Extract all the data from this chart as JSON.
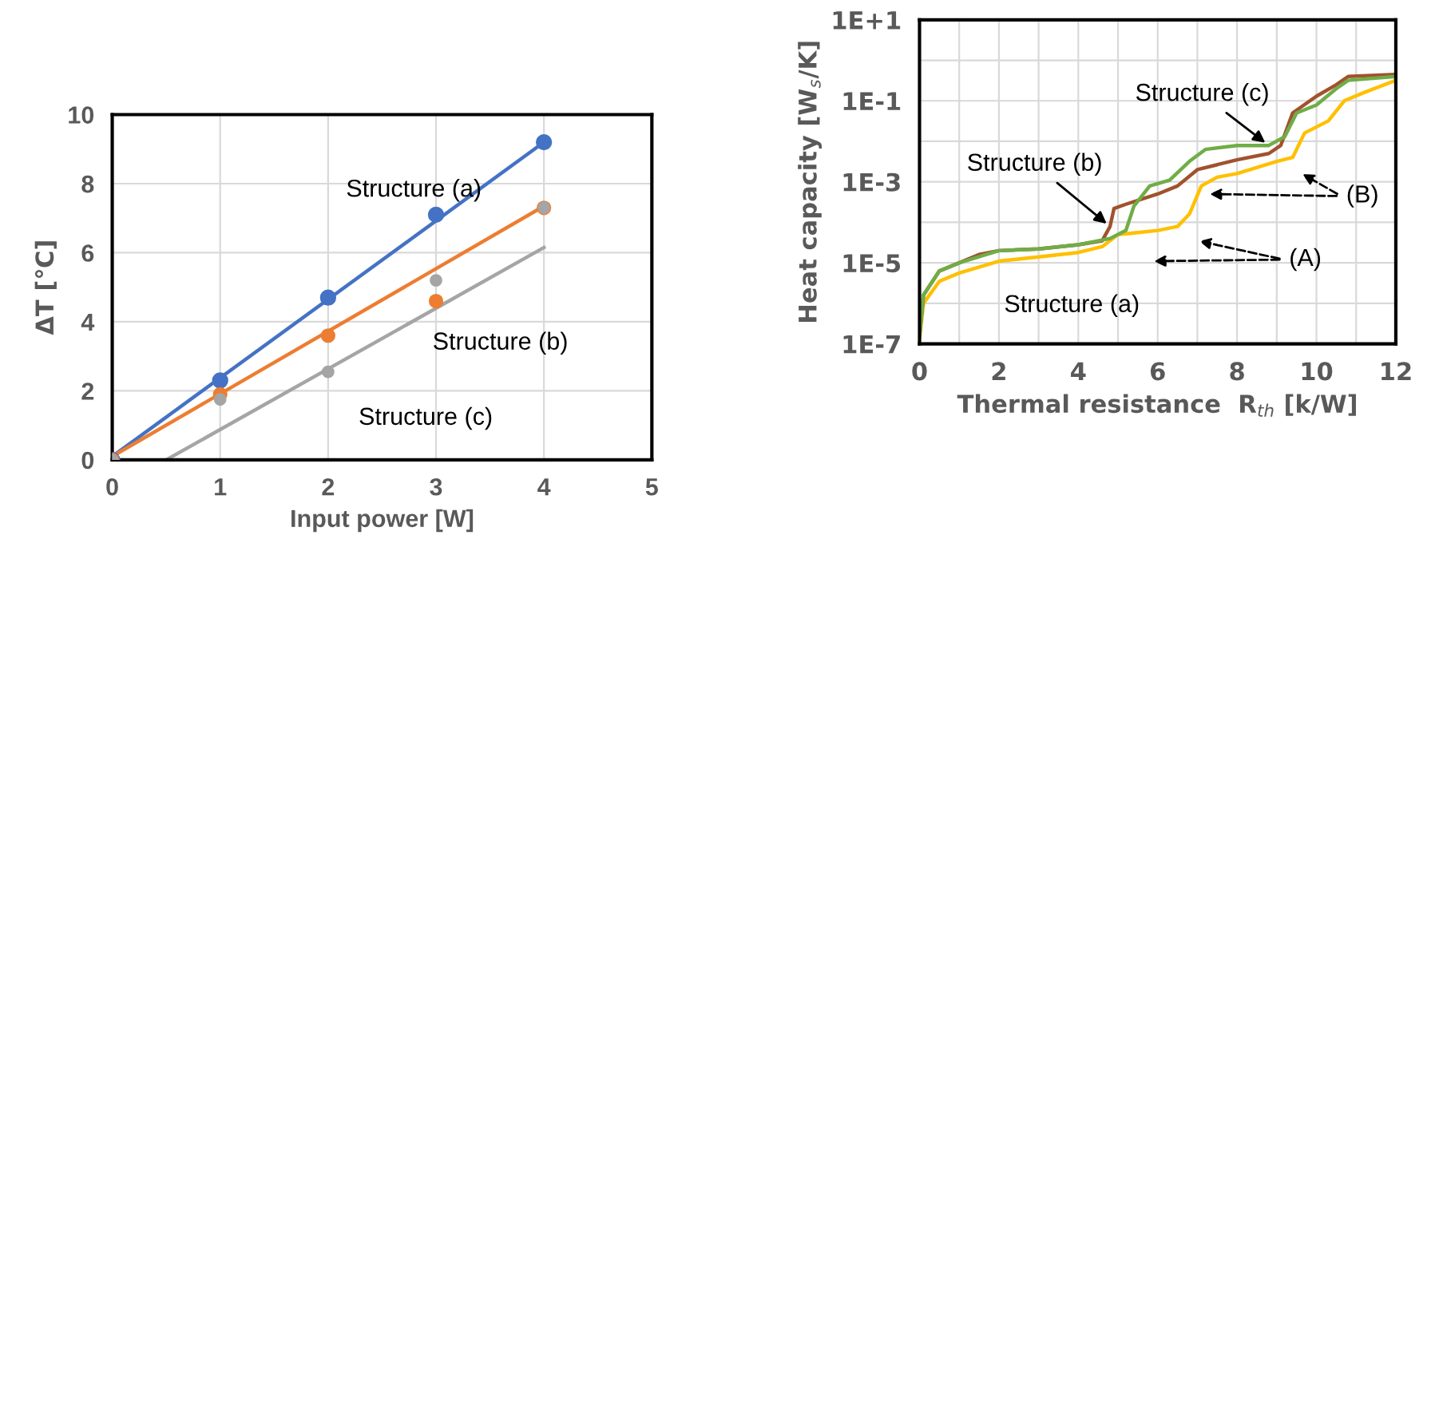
{
  "chart_data": [
    {
      "type": "scatter",
      "xlabel": "Input power [W]",
      "ylabel": "ΔT [℃]",
      "xlim": [
        0,
        5
      ],
      "ylim": [
        0,
        10
      ],
      "xticks": [
        0,
        1,
        2,
        3,
        4,
        5
      ],
      "yticks": [
        0,
        2,
        4,
        6,
        8,
        10
      ],
      "grid": true,
      "legend": false,
      "series": [
        {
          "name": "Structure (a)",
          "color": "#4472c4",
          "marker": "circle",
          "x": [
            0,
            1,
            2,
            3,
            4
          ],
          "values": [
            0,
            2.3,
            4.7,
            7.1,
            9.2
          ]
        },
        {
          "name": "Structure (b)",
          "color": "#ed7d31",
          "marker": "circle",
          "x": [
            0,
            1,
            2,
            3,
            4
          ],
          "values": [
            0,
            1.9,
            3.6,
            4.6,
            7.3
          ]
        },
        {
          "name": "Structure (c)",
          "color": "#a5a5a5",
          "marker": "circle",
          "x": [
            0,
            1,
            2,
            3,
            4
          ],
          "values": [
            0,
            1.75,
            2.55,
            5.2,
            7.3
          ]
        },
        {
          "type": "line",
          "color": "#4472c4",
          "x": [
            0,
            4
          ],
          "values": [
            0.1,
            9.2
          ]
        },
        {
          "type": "line",
          "color": "#ed7d31",
          "x": [
            0,
            4
          ],
          "values": [
            0.1,
            7.35
          ]
        },
        {
          "type": "line",
          "color": "#a5a5a5",
          "x": [
            0.5,
            4
          ],
          "values": [
            0,
            6.15
          ]
        }
      ]
    },
    {
      "type": "line",
      "xlabel": "Thermal resistance  R$_{th}$ [k/W]",
      "ylabel": "Heat capacity [W$_{s}$/K]",
      "log": "y",
      "xlim": [
        0,
        12
      ],
      "ylim": [
        1e-07,
        10
      ],
      "xticks": [
        0,
        {
          "value": 1,
          "label": null
        },
        2,
        {
          "value": 3,
          "label": null
        },
        4,
        {
          "value": 5,
          "label": null
        },
        6,
        {
          "value": 7,
          "label": null
        },
        8,
        {
          "value": 9,
          "label": null
        },
        10,
        {
          "value": 11,
          "label": null
        },
        12
      ],
      "yticks": [
        {
          "value": 1e-07,
          "label": "1E-7"
        },
        {
          "value": 1e-06,
          "label": null
        },
        {
          "value": 1e-05,
          "label": "1E-5"
        },
        {
          "value": 0.0001,
          "label": null
        },
        {
          "value": 0.001,
          "label": "1E-3"
        },
        {
          "value": 0.01,
          "label": null
        },
        {
          "value": 0.1,
          "label": "1E-1"
        },
        {
          "value": 1,
          "label": null
        },
        {
          "value": 10,
          "label": "1E+1"
        }
      ],
      "grid": true,
      "legend": false,
      "marker": "none",
      "series": [
        {
          "name": "Structure (a)",
          "color": "#ffc000",
          "x": [
            0,
            0.1,
            0.5,
            1,
            2,
            3,
            4,
            4.6,
            5,
            5.5,
            6,
            6.5,
            6.8,
            7.1,
            7.5,
            8,
            9,
            9.4,
            9.7,
            10.3,
            10.7,
            11.2,
            12
          ],
          "values": [
            1.3e-07,
            1e-06,
            3.5e-06,
            5.6e-06,
            1.1e-05,
            1.4e-05,
            1.8e-05,
            2.5e-05,
            5e-05,
            5.6e-05,
            6.3e-05,
            7.9e-05,
            0.00016,
            0.00079,
            0.0013,
            0.0016,
            0.0032,
            0.004,
            0.016,
            0.032,
            0.1,
            0.16,
            0.32
          ]
        },
        {
          "name": "Structure (b)",
          "color": "#a0522d",
          "x": [
            0,
            0.1,
            0.5,
            1,
            1.5,
            2,
            3,
            4,
            4.6,
            4.8,
            4.9,
            5.2,
            6,
            6.5,
            7,
            8,
            8.8,
            9.1,
            9.4,
            10,
            10.5,
            10.8,
            12
          ],
          "values": [
            1.6e-07,
            1.6e-06,
            6.3e-06,
            1e-05,
            1.6e-05,
            2e-05,
            2.2e-05,
            2.8e-05,
            3.5e-05,
            7.9e-05,
            0.00022,
            0.00028,
            0.0005,
            0.00079,
            0.002,
            0.0035,
            0.005,
            0.0079,
            0.05,
            0.13,
            0.25,
            0.4,
            0.45
          ]
        },
        {
          "name": "Structure (c)",
          "color": "#70ad47",
          "x": [
            0,
            0.1,
            0.5,
            1,
            2,
            3,
            4,
            4.8,
            5.2,
            5.4,
            5.8,
            6.3,
            6.8,
            7.2,
            8,
            8.8,
            9.2,
            9.5,
            10,
            10.5,
            10.8,
            12
          ],
          "values": [
            1.6e-07,
            1.6e-06,
            6.3e-06,
            1e-05,
            2e-05,
            2.2e-05,
            2.8e-05,
            4e-05,
            6.3e-05,
            0.00025,
            0.00079,
            0.0011,
            0.0032,
            0.0063,
            0.0079,
            0.0079,
            0.013,
            0.05,
            0.079,
            0.2,
            0.32,
            0.4
          ]
        }
      ],
      "annotations": [
        "(A)",
        "(B)"
      ]
    }
  ]
}
